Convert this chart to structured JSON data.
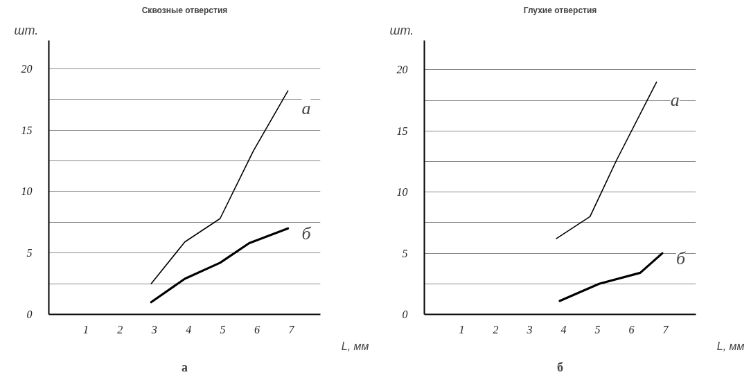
{
  "chart_data": [
    {
      "type": "line",
      "title": "Сквозные отверстия",
      "xlabel": "L, мм",
      "ylabel": "шт.",
      "annotations": [
        "а"
      ],
      "xlim": [
        -0.08,
        7.85
      ],
      "ylim": [
        0,
        22.3
      ],
      "xticks": [
        1,
        2,
        3,
        4,
        5,
        6,
        7
      ],
      "yticks": [
        0,
        {
          "value": 2.5,
          "label": null
        },
        5,
        {
          "value": 7.5,
          "label": null
        },
        10,
        {
          "value": 12.5,
          "label": null
        },
        15,
        {
          "value": 17.5,
          "label": null
        },
        20
      ],
      "grid": "y",
      "marker": "none",
      "line_style": "solid",
      "series": [
        {
          "name": "а",
          "color": "#000000",
          "x": [
            2.91,
            3.89,
            4.92,
            5.89,
            6.9
          ],
          "values": [
            2.5,
            5.9,
            7.8,
            13.3,
            18.2
          ]
        },
        {
          "name": "б",
          "color": "#000000",
          "x": [
            2.91,
            3.89,
            4.92,
            5.77,
            6.9
          ],
          "values": [
            1.0,
            2.9,
            4.2,
            5.8,
            7.0
          ]
        }
      ]
    },
    {
      "type": "line",
      "title": "Глухие отверстия",
      "xlabel": "L, мм",
      "ylabel": "шт.",
      "annotations": [
        "б"
      ],
      "xlim": [
        -0.1,
        7.9
      ],
      "ylim": [
        0,
        22.4
      ],
      "xticks": [
        1,
        2,
        3,
        4,
        5,
        6,
        7
      ],
      "yticks": [
        0,
        {
          "value": 2.5,
          "label": null
        },
        5,
        {
          "value": 7.5,
          "label": null
        },
        10,
        {
          "value": 12.5,
          "label": null
        },
        15,
        {
          "value": 17.5,
          "label": null
        },
        20
      ],
      "grid": "y",
      "marker": "none",
      "line_style": "solid",
      "series": [
        {
          "name": "а",
          "color": "#000000",
          "x": [
            3.79,
            4.78,
            5.56,
            6.74
          ],
          "values": [
            6.2,
            8.0,
            12.6,
            19.0
          ]
        },
        {
          "name": "б",
          "color": "#000000",
          "x": [
            3.89,
            5.05,
            6.26,
            6.91
          ],
          "values": [
            1.1,
            2.5,
            3.4,
            5.0
          ]
        }
      ]
    }
  ]
}
